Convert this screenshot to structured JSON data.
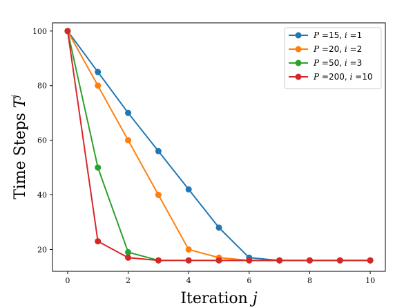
{
  "chart_data": {
    "type": "line",
    "title": "",
    "xlabel": "Iteration j",
    "ylabel": "Time Steps T^j",
    "xlabel_parts": {
      "text": "Iteration ",
      "var": "j"
    },
    "ylabel_parts": {
      "text": "Time Steps ",
      "var": "T",
      "sup": "j"
    },
    "xlim": [
      -0.5,
      10.5
    ],
    "ylim": [
      12,
      103
    ],
    "xticks": [
      0,
      2,
      4,
      6,
      8,
      10
    ],
    "yticks": [
      20,
      40,
      60,
      80,
      100
    ],
    "grid": false,
    "legend_position": "upper right",
    "x": [
      0,
      1,
      2,
      3,
      4,
      5,
      6,
      7,
      8,
      9,
      10
    ],
    "series": [
      {
        "name": "P =15, i =1",
        "legend": {
          "p": "15",
          "i": "1"
        },
        "color": "#1f77b4",
        "values": [
          100,
          85,
          70,
          56,
          42,
          28,
          17,
          16,
          16,
          16,
          16
        ]
      },
      {
        "name": "P =20, i =2",
        "legend": {
          "p": "20",
          "i": "2"
        },
        "color": "#ff7f0e",
        "values": [
          100,
          80,
          60,
          40,
          20,
          17,
          16,
          16,
          16,
          16,
          16
        ]
      },
      {
        "name": "P =50, i =3",
        "legend": {
          "p": "50",
          "i": "3"
        },
        "color": "#2ca02c",
        "values": [
          100,
          50,
          19,
          16,
          16,
          16,
          16,
          16,
          16,
          16,
          16
        ]
      },
      {
        "name": "P =200, i =10",
        "legend": {
          "p": "200",
          "i": "10"
        },
        "color": "#d62728",
        "values": [
          100,
          23,
          17,
          16,
          16,
          16,
          16,
          16,
          16,
          16,
          16
        ]
      }
    ]
  }
}
